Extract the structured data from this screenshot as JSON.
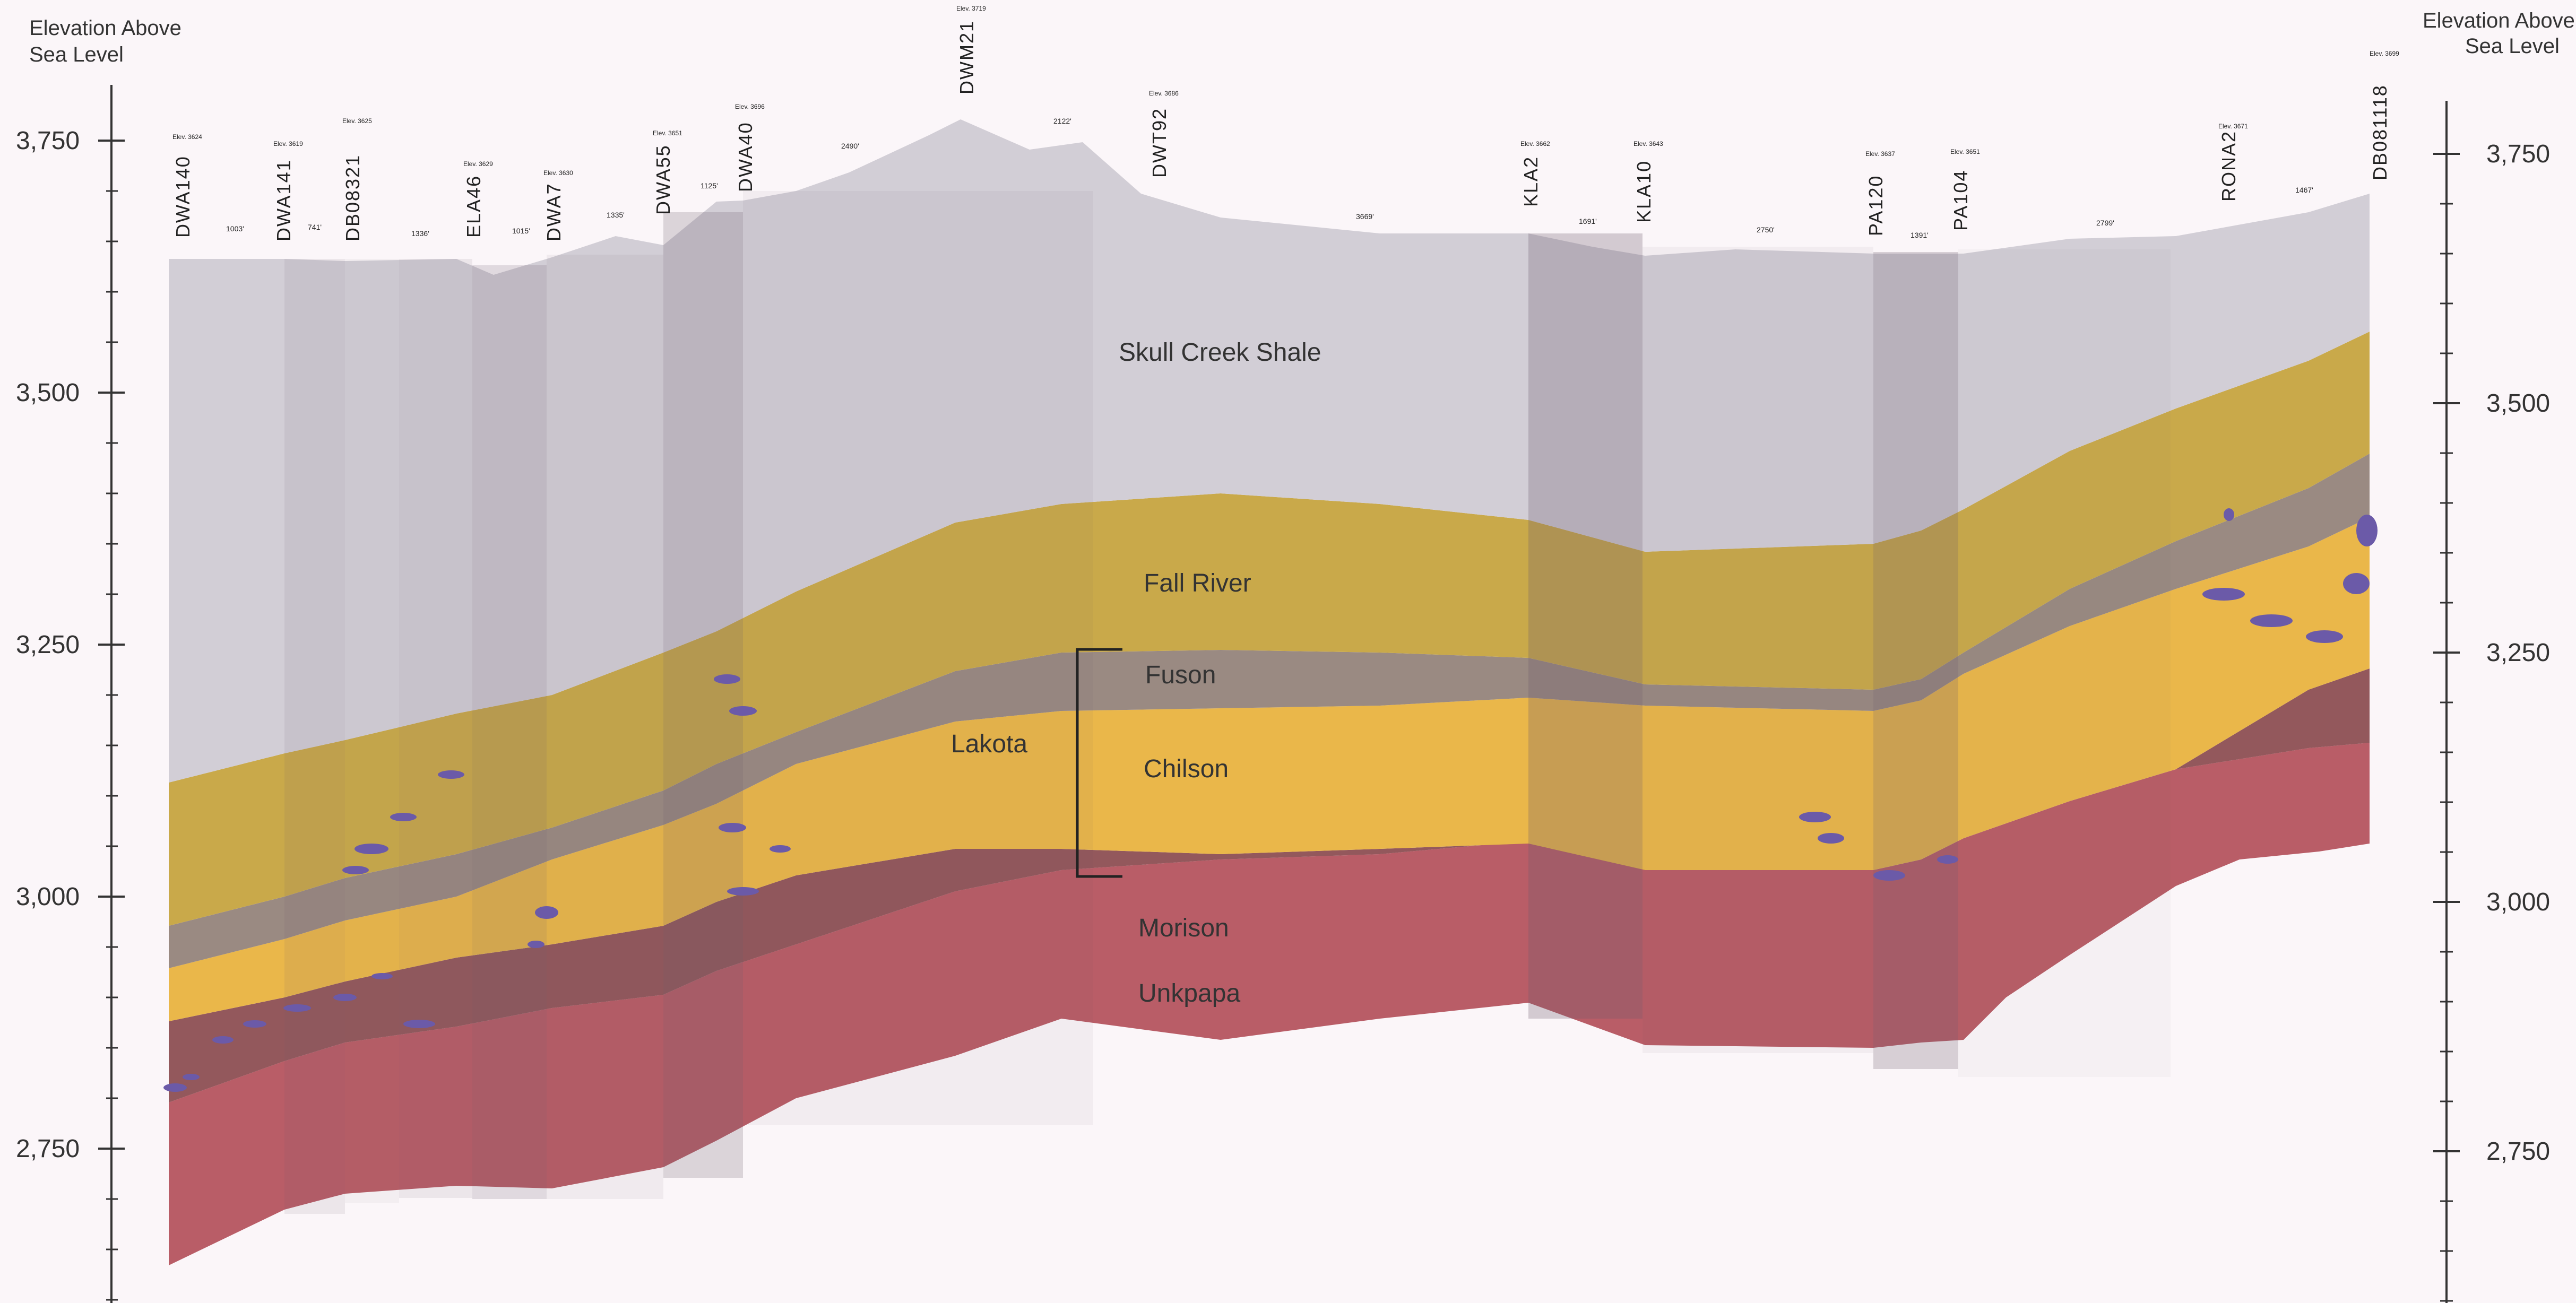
{
  "axis": {
    "left_title_line1": "Elevation Above",
    "left_title_line2": "Sea Level",
    "right_title_line1": "Elevation Above",
    "right_title_line2": "Sea Level",
    "left_ticks": [
      {
        "value": 3750,
        "label": "3,750"
      },
      {
        "value": 3500,
        "label": "3,500"
      },
      {
        "value": 3250,
        "label": "3,250"
      },
      {
        "value": 3000,
        "label": "3,000"
      },
      {
        "value": 2750,
        "label": "2,750"
      }
    ],
    "right_ticks": [
      {
        "value": 3750,
        "label": "3,750"
      },
      {
        "value": 3500,
        "label": "3,500"
      },
      {
        "value": 3250,
        "label": "3,250"
      },
      {
        "value": 3000,
        "label": "3,000"
      },
      {
        "value": 2750,
        "label": "2,750"
      }
    ]
  },
  "wells": [
    {
      "name": "DWA140",
      "elev": "Elev. 3624"
    },
    {
      "name": "DWA141",
      "elev": "Elev. 3619"
    },
    {
      "name": "DB08321",
      "elev": "Elev. 3625"
    },
    {
      "name": "ELA46",
      "elev": "Elev. 3629"
    },
    {
      "name": "DWA7",
      "elev": "Elev. 3630"
    },
    {
      "name": "DWA55",
      "elev": "Elev. 3651"
    },
    {
      "name": "DWA40",
      "elev": "Elev. 3696"
    },
    {
      "name": "DWM21",
      "elev": "Elev. 3719"
    },
    {
      "name": "DWT92",
      "elev": "Elev. 3686"
    },
    {
      "name": "KLA2",
      "elev": "Elev. 3662"
    },
    {
      "name": "KLA10",
      "elev": "Elev. 3643"
    },
    {
      "name": "PA120",
      "elev": "Elev. 3637"
    },
    {
      "name": "PA104",
      "elev": "Elev. 3651"
    },
    {
      "name": "RONA2",
      "elev": "Elev. 3671"
    },
    {
      "name": "DB081118",
      "elev": "Elev. 3699"
    }
  ],
  "spacings": [
    "1003'",
    "741'",
    "1336'",
    "1015'",
    "1335'",
    "1125'",
    "2490'",
    "2122'",
    "3669'",
    "1691'",
    "2750'",
    "1391'",
    "2799'",
    "1467'"
  ],
  "layers": {
    "skull_creek": "Skull Creek Shale",
    "fall_river": "Fall River",
    "fuson": "Fuson",
    "chilson": "Chilson",
    "lakota": "Lakota",
    "morison": "Morison",
    "unkpapa": "Unkpapa"
  },
  "colors": {
    "background": "#fbf6f9",
    "skull_creek_shale": "#d2ced6",
    "fall_river": "#c9a94a",
    "fuson": "#9a8a82",
    "chilson": "#eab74a",
    "morison": "#8a4a4e",
    "unkpapa": "#b14d57",
    "ore_zones": "#6b5aa8"
  }
}
